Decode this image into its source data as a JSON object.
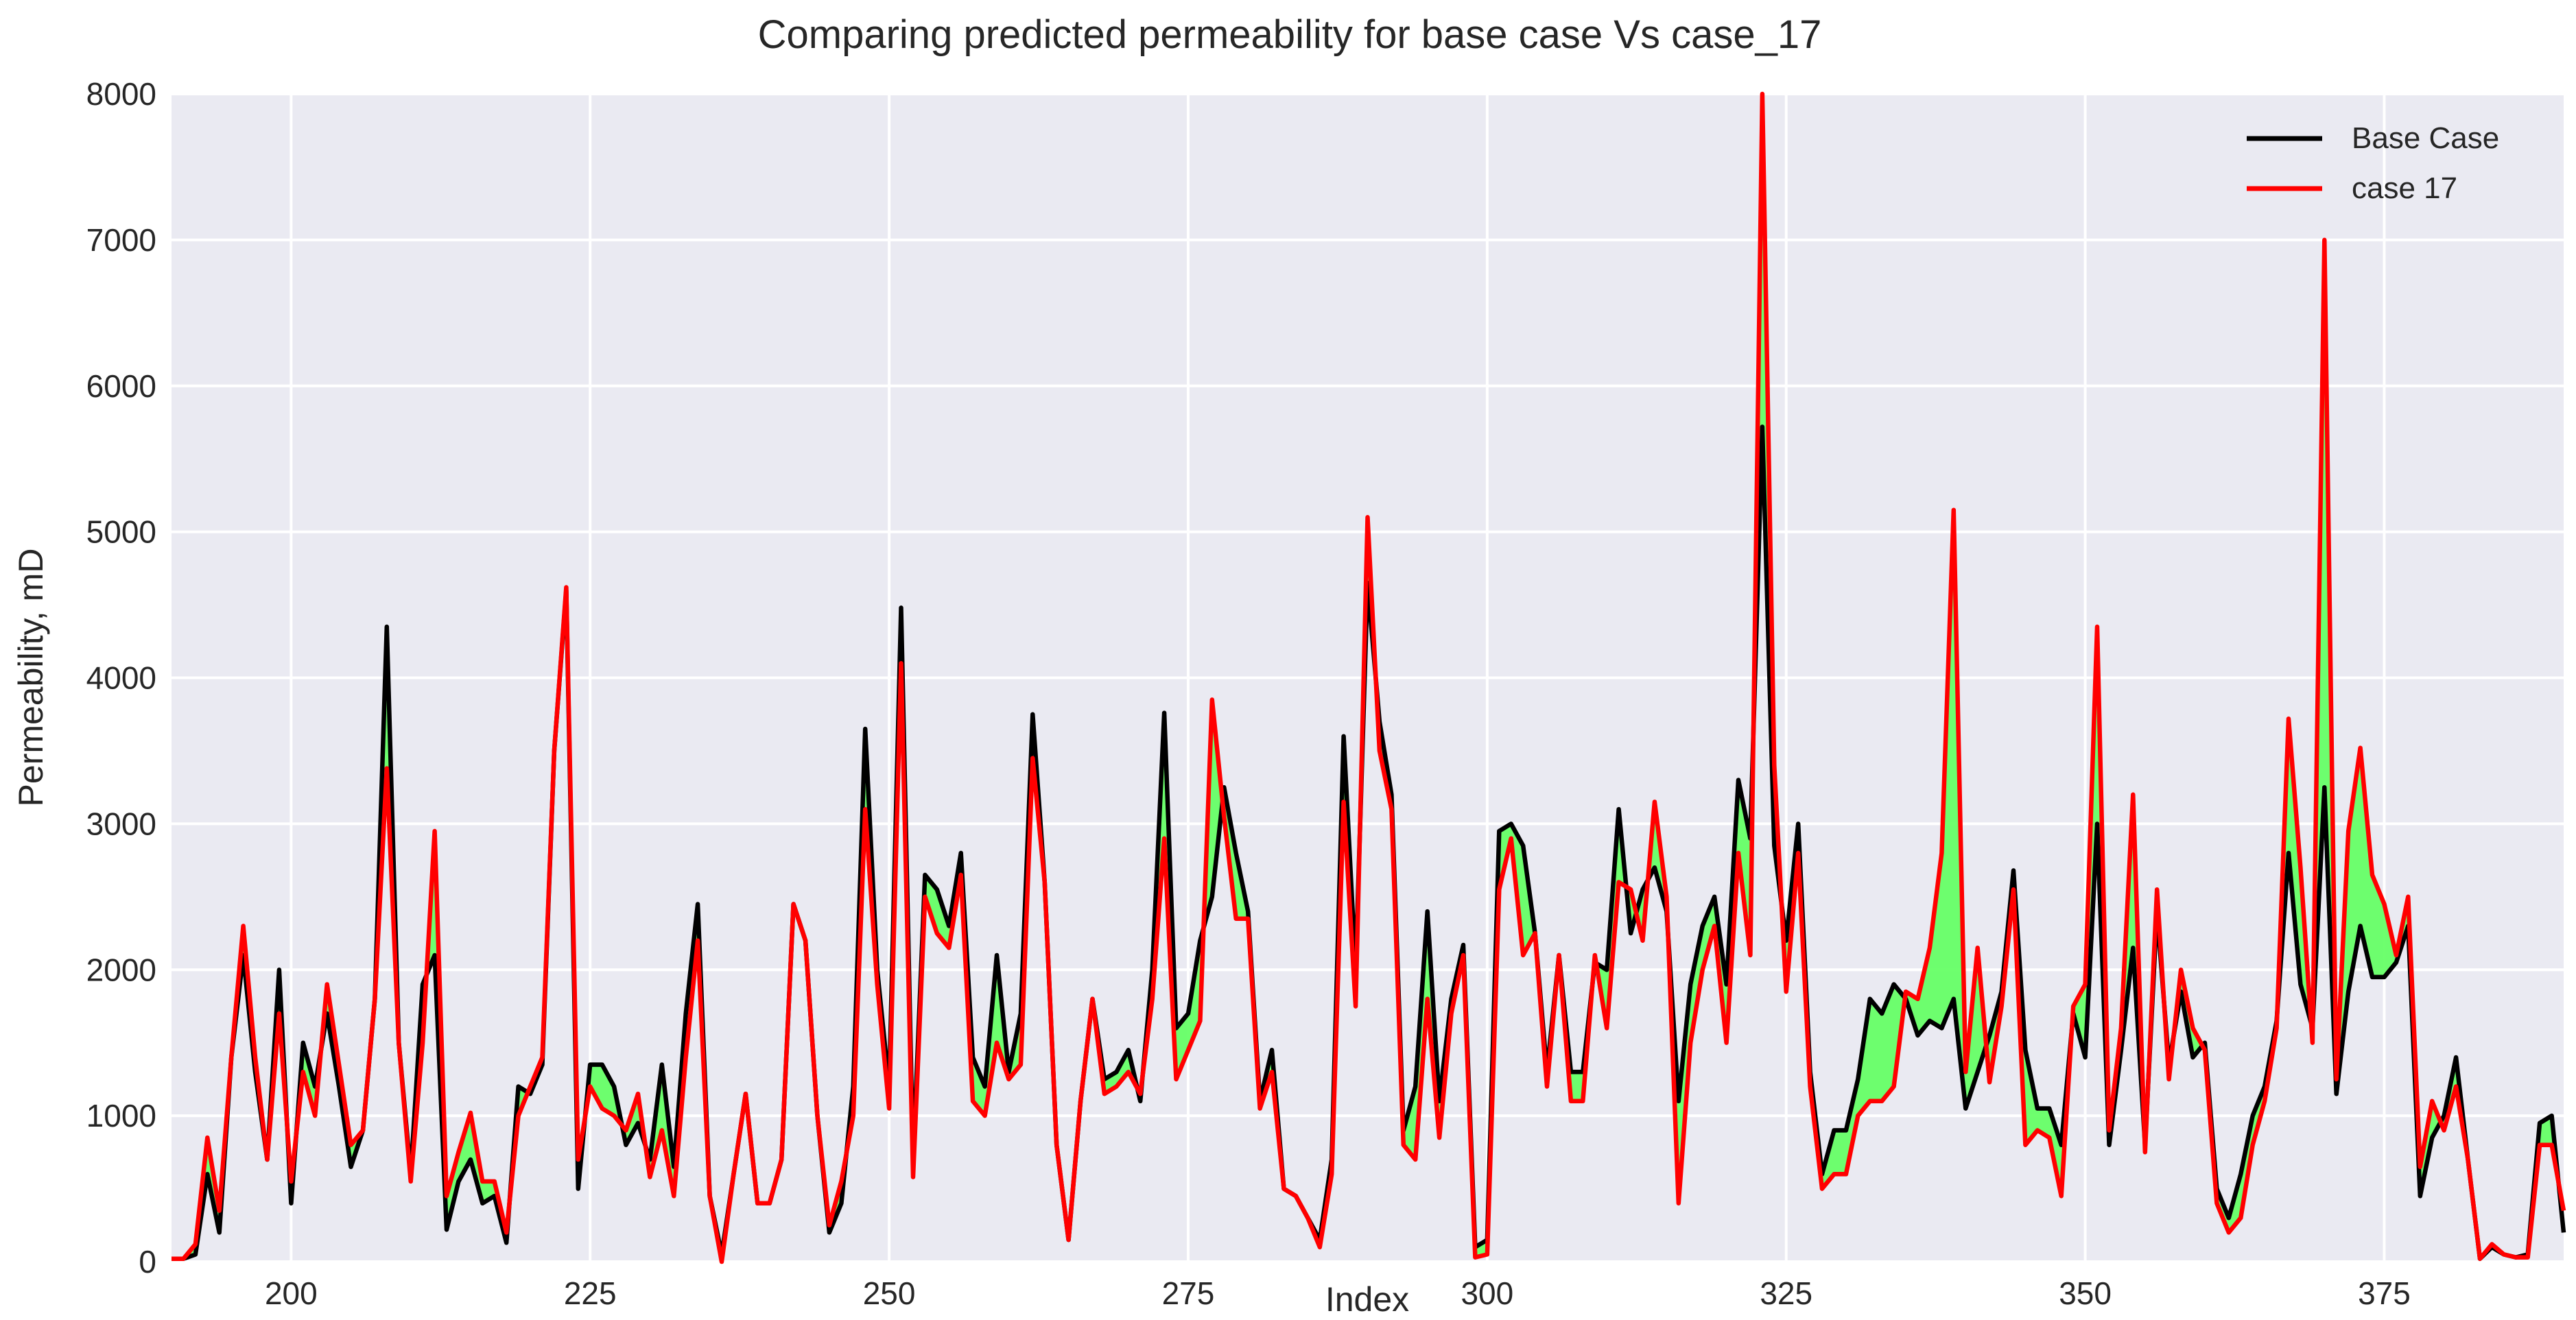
{
  "chart_data": {
    "type": "line",
    "title": "Comparing predicted permeability for base case Vs case_17",
    "xlabel": "Index",
    "ylabel": "Permeability, mD",
    "xlim": [
      190,
      390
    ],
    "ylim": [
      0,
      8000
    ],
    "x_ticks": [
      200,
      225,
      250,
      275,
      300,
      325,
      350,
      375
    ],
    "y_ticks": [
      0,
      1000,
      2000,
      3000,
      4000,
      5000,
      6000,
      7000,
      8000
    ],
    "grid": true,
    "legend_position": "upper-right",
    "background_color": "#eaeaf2",
    "fill_between_color": "#66ff66",
    "x": [
      190,
      191,
      192,
      193,
      194,
      195,
      196,
      197,
      198,
      199,
      200,
      201,
      202,
      203,
      204,
      205,
      206,
      207,
      208,
      209,
      210,
      211,
      212,
      213,
      214,
      215,
      216,
      217,
      218,
      219,
      220,
      221,
      222,
      223,
      224,
      225,
      226,
      227,
      228,
      229,
      230,
      231,
      232,
      233,
      234,
      235,
      236,
      237,
      238,
      239,
      240,
      241,
      242,
      243,
      244,
      245,
      246,
      247,
      248,
      249,
      250,
      251,
      252,
      253,
      254,
      255,
      256,
      257,
      258,
      259,
      260,
      261,
      262,
      263,
      264,
      265,
      266,
      267,
      268,
      269,
      270,
      271,
      272,
      273,
      274,
      275,
      276,
      277,
      278,
      279,
      280,
      281,
      282,
      283,
      284,
      285,
      286,
      287,
      288,
      289,
      290,
      291,
      292,
      293,
      294,
      295,
      296,
      297,
      298,
      299,
      300,
      301,
      302,
      303,
      304,
      305,
      306,
      307,
      308,
      309,
      310,
      311,
      312,
      313,
      314,
      315,
      316,
      317,
      318,
      319,
      320,
      321,
      322,
      323,
      324,
      325,
      326,
      327,
      328,
      329,
      330,
      331,
      332,
      333,
      334,
      335,
      336,
      337,
      338,
      339,
      340,
      341,
      342,
      343,
      344,
      345,
      346,
      347,
      348,
      349,
      350,
      351,
      352,
      353,
      354,
      355,
      356,
      357,
      358,
      359,
      360,
      361,
      362,
      363,
      364,
      365,
      366,
      367,
      368,
      369,
      370,
      371,
      372,
      373,
      374,
      375,
      376,
      377,
      378,
      379,
      380,
      381,
      382,
      383,
      384,
      385,
      386,
      387,
      388,
      389,
      390
    ],
    "series": [
      {
        "name": "Base Case",
        "color": "#000000",
        "values": [
          20,
          20,
          50,
          600,
          200,
          1400,
          2100,
          1300,
          700,
          2000,
          400,
          1500,
          1200,
          1700,
          1200,
          650,
          900,
          1800,
          4350,
          1500,
          600,
          1900,
          2100,
          220,
          550,
          700,
          400,
          450,
          130,
          1200,
          1150,
          1350,
          3500,
          4600,
          500,
          1350,
          1350,
          1200,
          800,
          950,
          700,
          1350,
          650,
          1700,
          2450,
          450,
          50,
          600,
          1150,
          400,
          400,
          700,
          2450,
          2200,
          1000,
          200,
          400,
          1200,
          3650,
          2000,
          1200,
          4480,
          700,
          2650,
          2550,
          2300,
          2800,
          1400,
          1200,
          2100,
          1300,
          1700,
          3750,
          2600,
          800,
          150,
          1100,
          1800,
          1250,
          1300,
          1450,
          1100,
          2000,
          3760,
          1600,
          1700,
          2200,
          2500,
          3250,
          2800,
          2400,
          1100,
          1450,
          500,
          450,
          300,
          150,
          700,
          3600,
          2000,
          4650,
          3700,
          3200,
          900,
          1200,
          2400,
          1100,
          1800,
          2170,
          100,
          150,
          2950,
          3000,
          2850,
          2250,
          1300,
          2100,
          1300,
          1300,
          2050,
          2000,
          3100,
          2250,
          2550,
          2700,
          2400,
          1100,
          1900,
          2300,
          2500,
          1900,
          3300,
          2900,
          5720,
          2850,
          2200,
          3000,
          1300,
          600,
          900,
          900,
          1250,
          1800,
          1700,
          1900,
          1800,
          1550,
          1650,
          1600,
          1800,
          1050,
          1300,
          1550,
          1850,
          2680,
          1450,
          1050,
          1050,
          800,
          1700,
          1400,
          3000,
          800,
          1450,
          2150,
          800,
          2400,
          1350,
          1850,
          1400,
          1500,
          500,
          300,
          600,
          1000,
          1200,
          1650,
          2800,
          1900,
          1600,
          3250,
          1150,
          1850,
          2300,
          1950,
          1950,
          2050,
          2300,
          450,
          850,
          1000,
          1400,
          700,
          20,
          100,
          50,
          30,
          50,
          950,
          1000,
          200
        ]
      },
      {
        "name": "case 17",
        "color": "#ff0000",
        "values": [
          20,
          20,
          120,
          850,
          350,
          1400,
          2300,
          1400,
          700,
          1700,
          550,
          1300,
          1000,
          1900,
          1350,
          800,
          900,
          1800,
          3380,
          1500,
          550,
          1500,
          2950,
          450,
          750,
          1020,
          550,
          550,
          200,
          1000,
          1200,
          1400,
          3500,
          4620,
          700,
          1200,
          1050,
          1000,
          900,
          1150,
          580,
          900,
          450,
          1400,
          2200,
          450,
          0,
          600,
          1150,
          400,
          400,
          700,
          2450,
          2200,
          1000,
          250,
          550,
          1000,
          3100,
          1900,
          1050,
          4100,
          580,
          2500,
          2250,
          2150,
          2650,
          1100,
          1000,
          1500,
          1250,
          1350,
          3450,
          2600,
          800,
          150,
          1100,
          1800,
          1150,
          1200,
          1300,
          1150,
          1800,
          2900,
          1250,
          1450,
          1650,
          3850,
          3050,
          2350,
          2350,
          1050,
          1300,
          500,
          450,
          300,
          100,
          600,
          3150,
          1750,
          5100,
          3500,
          3100,
          800,
          700,
          1800,
          850,
          1700,
          2100,
          30,
          50,
          2550,
          2900,
          2100,
          2250,
          1200,
          2100,
          1100,
          1100,
          2100,
          1600,
          2600,
          2550,
          2200,
          3150,
          2500,
          400,
          1500,
          2000,
          2300,
          1500,
          2800,
          2100,
          8000,
          3400,
          1850,
          2800,
          1200,
          500,
          600,
          600,
          1000,
          1100,
          1100,
          1200,
          1850,
          1800,
          2150,
          2800,
          5150,
          1300,
          2150,
          1230,
          1750,
          2550,
          800,
          900,
          850,
          450,
          1750,
          1900,
          4350,
          900,
          1600,
          3200,
          750,
          2550,
          1250,
          2000,
          1600,
          1450,
          400,
          200,
          300,
          800,
          1100,
          1600,
          3720,
          2700,
          1500,
          7000,
          1250,
          2950,
          3520,
          2650,
          2450,
          2100,
          2500,
          650,
          1100,
          900,
          1200,
          700,
          20,
          120,
          50,
          30,
          30,
          800,
          800,
          350
        ]
      }
    ]
  }
}
